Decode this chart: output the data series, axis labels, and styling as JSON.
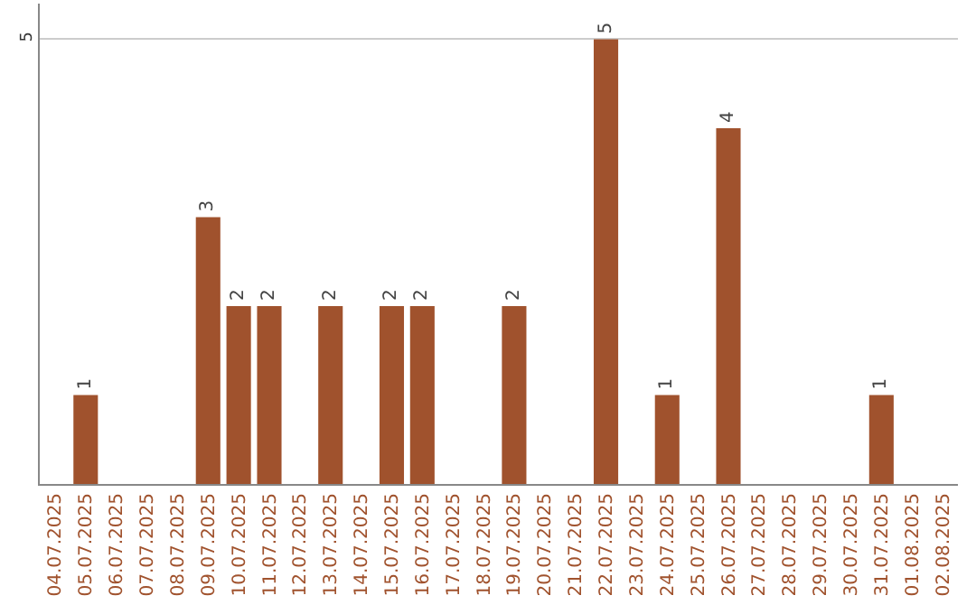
{
  "chart_data": {
    "type": "bar",
    "categories": [
      "04.07.2025",
      "05.07.2025",
      "06.07.2025",
      "07.07.2025",
      "08.07.2025",
      "09.07.2025",
      "10.07.2025",
      "11.07.2025",
      "12.07.2025",
      "13.07.2025",
      "14.07.2025",
      "15.07.2025",
      "16.07.2025",
      "17.07.2025",
      "18.07.2025",
      "19.07.2025",
      "20.07.2025",
      "21.07.2025",
      "22.07.2025",
      "23.07.2025",
      "24.07.2025",
      "25.07.2025",
      "26.07.2025",
      "27.07.2025",
      "28.07.2025",
      "29.07.2025",
      "30.07.2025",
      "31.07.2025",
      "01.08.2025",
      "02.08.2025"
    ],
    "values": [
      0,
      1,
      0,
      0,
      0,
      3,
      2,
      2,
      0,
      2,
      0,
      2,
      2,
      0,
      0,
      2,
      0,
      0,
      5,
      0,
      1,
      0,
      4,
      0,
      0,
      0,
      0,
      1,
      0,
      0
    ],
    "value_labels": [
      null,
      "1",
      null,
      null,
      null,
      "3",
      "2",
      "2",
      null,
      "2",
      null,
      "2",
      "2",
      null,
      null,
      "2",
      null,
      null,
      "5",
      null,
      "1",
      null,
      "4",
      null,
      null,
      null,
      null,
      "1",
      null,
      null
    ],
    "color": "#a0522d",
    "ylim": [
      0,
      5.4
    ],
    "yticks": [
      5
    ],
    "grid": "y"
  }
}
